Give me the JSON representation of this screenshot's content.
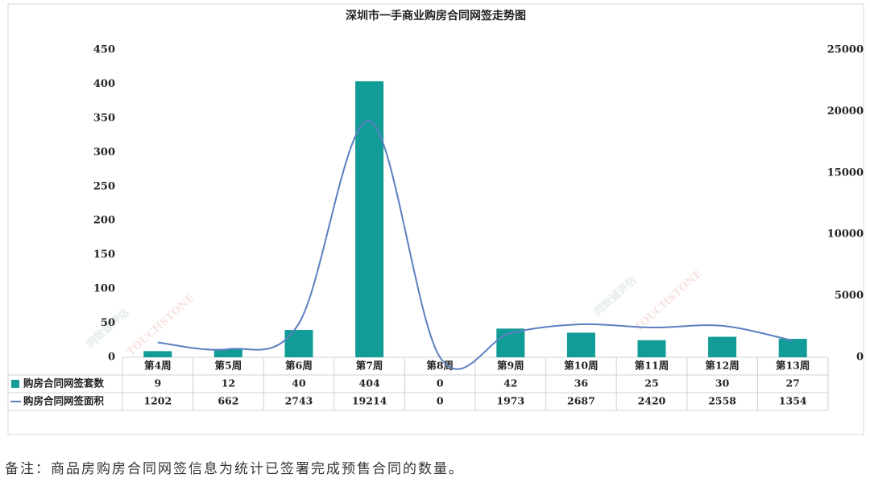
{
  "chart_data": {
    "type": "bar-line",
    "title": "深圳市一手商业购房合同网签走势图",
    "categories": [
      "第4周",
      "第5周",
      "第6周",
      "第7周",
      "第8周",
      "第9周",
      "第10周",
      "第11周",
      "第12周",
      "第13周"
    ],
    "series": [
      {
        "name": "购房合同网签套数",
        "color": "#129c98",
        "type": "bar",
        "values": [
          9,
          12,
          40,
          404,
          0,
          42,
          36,
          25,
          30,
          27
        ]
      },
      {
        "name": "购房合同网签面积",
        "color": "#5b7fc0",
        "type": "line",
        "axis": "y2",
        "values": [
          1202,
          662,
          2743,
          19214,
          0,
          1973,
          2687,
          2420,
          2558,
          1354
        ]
      }
    ],
    "ylim": [
      0,
      450
    ],
    "yticks": [
      0,
      50,
      100,
      150,
      200,
      250,
      300,
      350,
      400,
      450
    ],
    "y2lim": [
      0,
      25000
    ],
    "y2ticks": [
      0,
      5000,
      10000,
      15000,
      20000,
      25000
    ],
    "watermark": [
      "同致诚评估",
      "TOUCHSTONE"
    ]
  },
  "note": "备注：商品房购房合同网签信息为统计已签署完成预售合同的数量。"
}
